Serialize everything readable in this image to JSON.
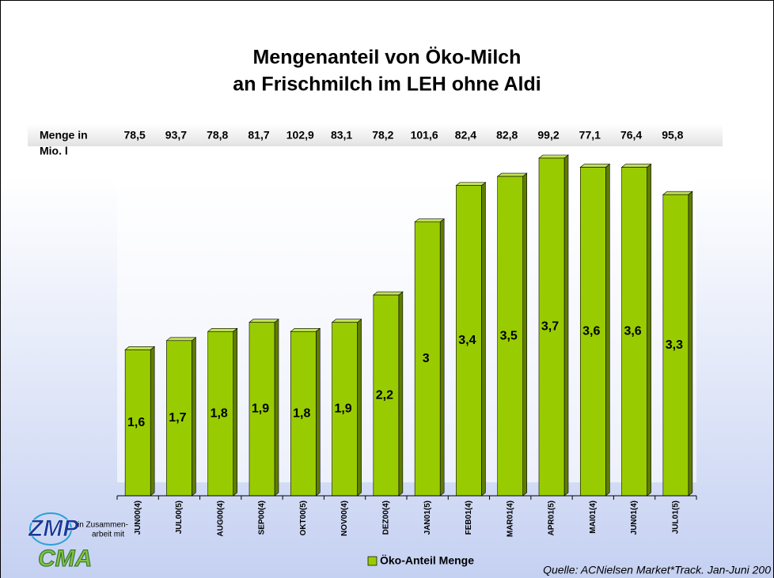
{
  "chart_data": {
    "type": "bar",
    "title_lines": [
      "Mengenanteil von Öko-Milch",
      "an Frischmilch im LEH ohne Aldi"
    ],
    "categories": [
      "JUN00(4)",
      "JUL00(5)",
      "AUG00(4)",
      "SEP00(4)",
      "OKT00(5)",
      "NOV00(4)",
      "DEZ00(4)",
      "JAN01(5)",
      "FEB01(4)",
      "MAR01(4)",
      "APR01(5)",
      "MAI01(4)",
      "JUN01(4)",
      "JUL01(5)"
    ],
    "series": [
      {
        "name": "Öko-Anteil Menge",
        "color": "#99cc00",
        "values": [
          1.6,
          1.7,
          1.8,
          1.9,
          1.8,
          1.9,
          2.2,
          3,
          3.4,
          3.5,
          3.7,
          3.6,
          3.6,
          3.3
        ],
        "value_labels": [
          "1,6",
          "1,7",
          "1,8",
          "1,9",
          "1,8",
          "1,9",
          "2,2",
          "3",
          "3,4",
          "3,5",
          "3,7",
          "3,6",
          "3,6",
          "3,3"
        ]
      }
    ],
    "volume_row": {
      "label_lines": [
        "Menge in",
        "Mio. l"
      ],
      "values": [
        78.5,
        93.7,
        78.8,
        81.7,
        102.9,
        83.1,
        78.2,
        101.6,
        82.4,
        82.8,
        99.2,
        77.1,
        76.4,
        95.8
      ],
      "value_labels": [
        "78,5",
        "93,7",
        "78,8",
        "81,7",
        "102,9",
        "83,1",
        "78,2",
        "101,6",
        "82,4",
        "82,8",
        "99,2",
        "77,1",
        "76,4",
        "95,8"
      ]
    },
    "source": "Quelle: ACNielsen Market*Track. Jan-Juni 200",
    "logo": {
      "top": "ZMP",
      "middle_lines": [
        "in Zusammen-",
        "arbeit mit"
      ],
      "bottom": "CMA"
    }
  }
}
